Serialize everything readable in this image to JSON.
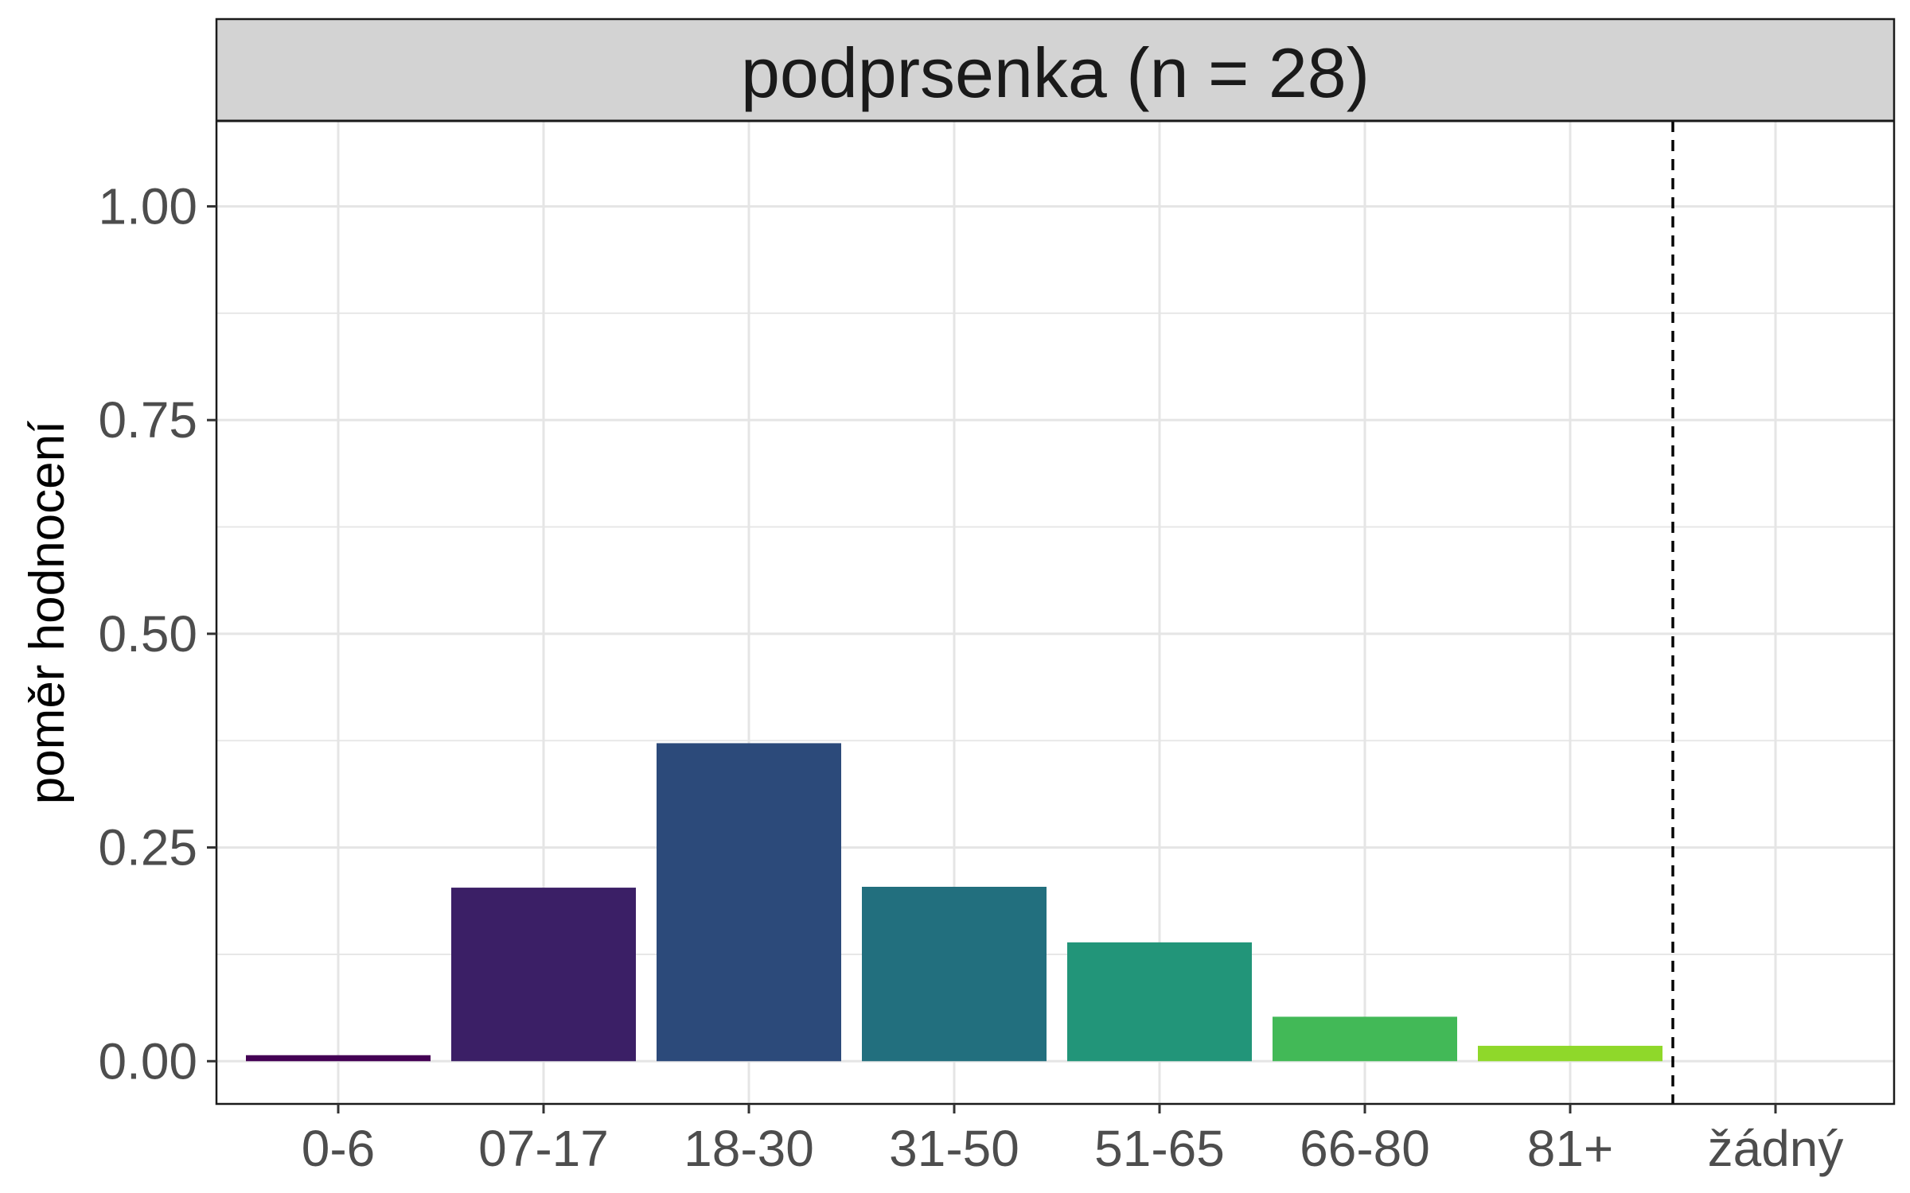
{
  "chart_data": {
    "type": "bar",
    "title": "podprsenka (n = 28)",
    "xlabel": "",
    "ylabel": "poměr hodnocení",
    "categories": [
      "0-6",
      "07-17",
      "18-30",
      "31-50",
      "51-65",
      "66-80",
      "81+",
      "žádný"
    ],
    "values": [
      0.007,
      0.203,
      0.372,
      0.204,
      0.139,
      0.052,
      0.018,
      0.0
    ],
    "bar_colors": [
      "#440154",
      "#3B1F66",
      "#2C4A7A",
      "#226F7E",
      "#229579",
      "#42B957",
      "#8FD82A",
      null
    ],
    "ylim": [
      -0.05,
      1.1
    ],
    "yticks": [
      0.0,
      0.25,
      0.5,
      0.75,
      1.0
    ],
    "ytick_labels": [
      "0.00",
      "0.25",
      "0.50",
      "0.75",
      "1.00"
    ],
    "dashed_vline_between": [
      "81+",
      "žádný"
    ],
    "grid": true,
    "legend": "none",
    "colors": {
      "strip_bg": "#D3D3D3",
      "panel_border": "#1a1a1a",
      "grid": "#E5E5E5",
      "tick_text": "#4D4D4D",
      "title_text": "#1A1A1A"
    }
  }
}
